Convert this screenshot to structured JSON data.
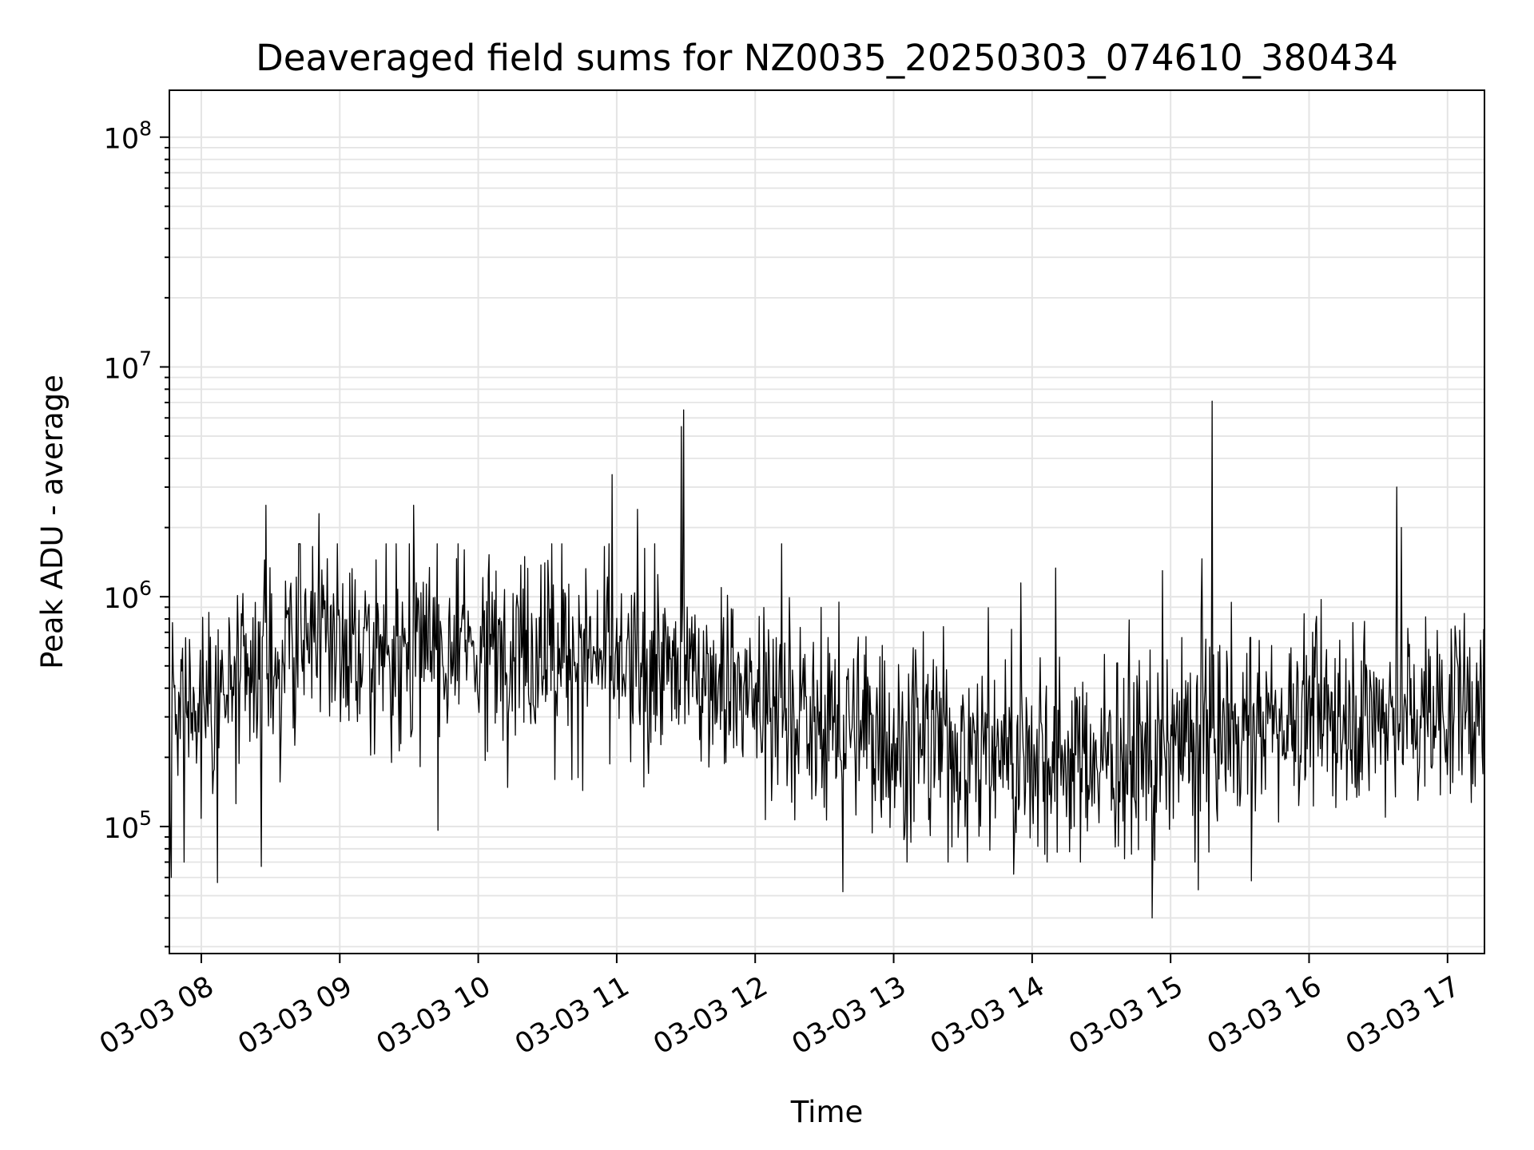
{
  "chart_data": {
    "type": "line",
    "title": "Deaveraged field sums for NZ0035_20250303_074610_380434",
    "xlabel": "Time",
    "ylabel": "Peak ADU - average",
    "x_range": [
      "2025-03-03 07:46:10",
      "2025-03-03 17:16:00"
    ],
    "x_ticks": [
      {
        "t": "2025-03-03 08:00",
        "label": "03-03 08"
      },
      {
        "t": "2025-03-03 09:00",
        "label": "03-03 09"
      },
      {
        "t": "2025-03-03 10:00",
        "label": "03-03 10"
      },
      {
        "t": "2025-03-03 11:00",
        "label": "03-03 11"
      },
      {
        "t": "2025-03-03 12:00",
        "label": "03-03 12"
      },
      {
        "t": "2025-03-03 13:00",
        "label": "03-03 13"
      },
      {
        "t": "2025-03-03 14:00",
        "label": "03-03 14"
      },
      {
        "t": "2025-03-03 15:00",
        "label": "03-03 15"
      },
      {
        "t": "2025-03-03 16:00",
        "label": "03-03 16"
      },
      {
        "t": "2025-03-03 17:00",
        "label": "03-03 17"
      }
    ],
    "y_scale": "log",
    "ylim": [
      28000,
      160000000
    ],
    "y_ticks": [
      {
        "value": 100000,
        "base": "10",
        "exp": "5"
      },
      {
        "value": 1000000,
        "base": "10",
        "exp": "6"
      },
      {
        "value": 10000000,
        "base": "10",
        "exp": "7"
      },
      {
        "value": 100000000,
        "base": "10",
        "exp": "8"
      }
    ],
    "grid": true,
    "line_color": "#000000",
    "baseline_profile": [
      {
        "t": "2025-03-03 07:46",
        "y": 300000
      },
      {
        "t": "2025-03-03 08:15",
        "y": 400000
      },
      {
        "t": "2025-03-03 08:45",
        "y": 650000
      },
      {
        "t": "2025-03-03 09:30",
        "y": 550000
      },
      {
        "t": "2025-03-03 10:15",
        "y": 650000
      },
      {
        "t": "2025-03-03 11:00",
        "y": 500000
      },
      {
        "t": "2025-03-03 11:45",
        "y": 450000
      },
      {
        "t": "2025-03-03 12:30",
        "y": 280000
      },
      {
        "t": "2025-03-03 13:15",
        "y": 230000
      },
      {
        "t": "2025-03-03 14:00",
        "y": 220000
      },
      {
        "t": "2025-03-03 14:45",
        "y": 190000
      },
      {
        "t": "2025-03-03 15:15",
        "y": 260000
      },
      {
        "t": "2025-03-03 16:00",
        "y": 320000
      },
      {
        "t": "2025-03-03 17:16",
        "y": 330000
      }
    ],
    "peaks": [
      {
        "t": "2025-03-03 08:28",
        "y": 2500000
      },
      {
        "t": "2025-03-03 08:51",
        "y": 2300000
      },
      {
        "t": "2025-03-03 09:32",
        "y": 2500000
      },
      {
        "t": "2025-03-03 10:58",
        "y": 3400000
      },
      {
        "t": "2025-03-03 11:09",
        "y": 2400000
      },
      {
        "t": "2025-03-03 11:28",
        "y": 5500000
      },
      {
        "t": "2025-03-03 11:29",
        "y": 6500000
      },
      {
        "t": "2025-03-03 15:18",
        "y": 7100000
      },
      {
        "t": "2025-03-03 16:38",
        "y": 3000000
      },
      {
        "t": "2025-03-03 16:40",
        "y": 2000000
      }
    ],
    "dips": [
      {
        "t": "2025-03-03 07:47",
        "y": 60000
      },
      {
        "t": "2025-03-03 08:07",
        "y": 57000
      },
      {
        "t": "2025-03-03 08:26",
        "y": 67000
      },
      {
        "t": "2025-03-03 12:38",
        "y": 52000
      },
      {
        "t": "2025-03-03 13:52",
        "y": 62000
      },
      {
        "t": "2025-03-03 14:52",
        "y": 40000
      },
      {
        "t": "2025-03-03 15:12",
        "y": 53000
      },
      {
        "t": "2025-03-03 15:35",
        "y": 58000
      }
    ]
  }
}
